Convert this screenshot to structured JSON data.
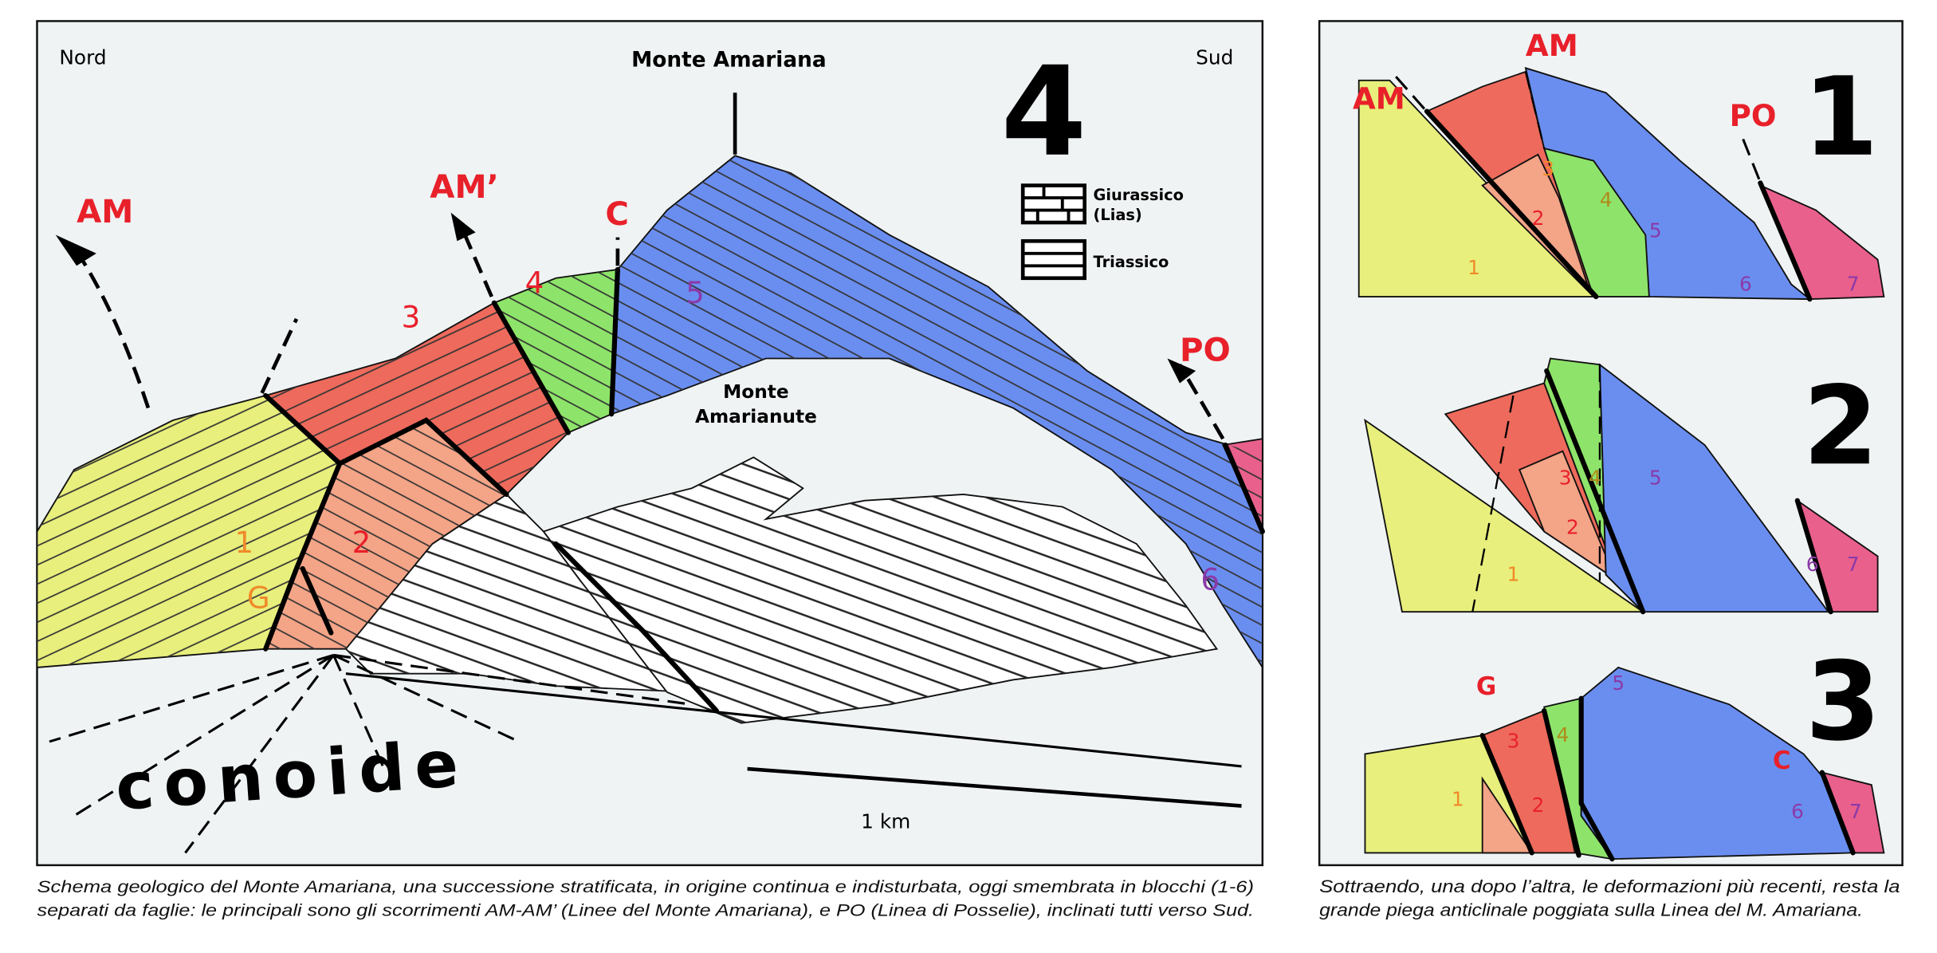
{
  "main_panel": {
    "north_label": "Nord",
    "south_label": "Sud",
    "summit_label": "Monte Amariana",
    "panel_number": "4",
    "sub_peak_label_1": "Monte",
    "sub_peak_label_2": "Amarianute",
    "fault_labels": {
      "am": "AM",
      "am_prime": "AM’",
      "c": "C",
      "po": "PO"
    },
    "block_labels": {
      "b1": "1",
      "g": "G",
      "b2": "2",
      "b3": "3",
      "b4": "4",
      "b5": "5",
      "b6": "6"
    },
    "fan_label": "conoide",
    "scale_label": "1 km",
    "legend": [
      {
        "label_1": "Giurassico",
        "label_2": "(Lias)",
        "pattern": "brick"
      },
      {
        "label_1": "Triassico",
        "pattern": "horizontal-lines"
      }
    ],
    "caption_line_1": "Schema geologico del Monte Amariana, una successione stratificata, in origine continua e indisturbata, oggi smembrata in blocchi (1-6)",
    "caption_line_2": "separati da faglie: le principali sono gli scorrimenti AM-AM’ (Linee del Monte Amariana), e PO (Linea di Posselie), inclinati tutti verso Sud."
  },
  "side_panel": {
    "stages": [
      {
        "number": "1",
        "faults": [
          "AM",
          "AM",
          "PO"
        ],
        "blocks": [
          "1",
          "2",
          "3",
          "4",
          "5",
          "6",
          "7"
        ]
      },
      {
        "number": "2",
        "blocks": [
          "1",
          "2",
          "3",
          "4",
          "5",
          "6",
          "7"
        ]
      },
      {
        "number": "3",
        "faults": [
          "G",
          "C"
        ],
        "blocks": [
          "1",
          "2",
          "3",
          "4",
          "5",
          "6",
          "7"
        ]
      }
    ],
    "caption_line_1": "Sottraendo, una dopo l’altra, le deformazioni più recenti, resta la",
    "caption_line_2": "grande piega anticlinale poggiata sulla Linea del M. Amariana."
  },
  "colors": {
    "background": "#eff3f4",
    "block_1_yellow": "#e8ef7c",
    "block_2_orange": "#f4a487",
    "block_3_red": "#ee6a5c",
    "block_4_green": "#8ee46a",
    "block_5_blue": "#6a8ef0",
    "block_7_pink": "#e9608c",
    "fault_label_red": "#e8202a",
    "number_orange": "#f08a2a",
    "number_purple": "#8a3aa8"
  }
}
